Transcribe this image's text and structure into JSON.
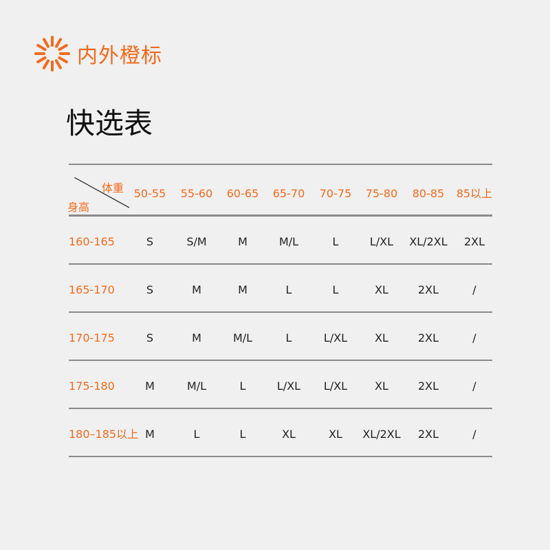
{
  "brand": {
    "name": "内外橙标",
    "logo_icon": "orange-sunburst-logo",
    "color": "#f26a1b"
  },
  "title": "快选表",
  "table": {
    "corner": {
      "column_axis": "体重",
      "row_axis": "身高"
    },
    "columns": [
      "50-55",
      "55-60",
      "60-65",
      "65-70",
      "70-75",
      "75-80",
      "80-85",
      "85以上"
    ],
    "rows": [
      {
        "label": "160-165",
        "cells": [
          "S",
          "S/M",
          "M",
          "M/L",
          "L",
          "L/XL",
          "XL/2XL",
          "2XL"
        ]
      },
      {
        "label": "165-170",
        "cells": [
          "S",
          "M",
          "M",
          "L",
          "L",
          "XL",
          "2XL",
          "/"
        ]
      },
      {
        "label": "170-175",
        "cells": [
          "S",
          "M",
          "M/L",
          "L",
          "L/XL",
          "XL",
          "2XL",
          "/"
        ]
      },
      {
        "label": "175-180",
        "cells": [
          "M",
          "M/L",
          "L",
          "L/XL",
          "L/XL",
          "XL",
          "2XL",
          "/"
        ]
      },
      {
        "label": "180–185以上",
        "cells": [
          "M",
          "L",
          "L",
          "XL",
          "XL",
          "XL/2XL",
          "2XL",
          "/"
        ]
      }
    ]
  }
}
